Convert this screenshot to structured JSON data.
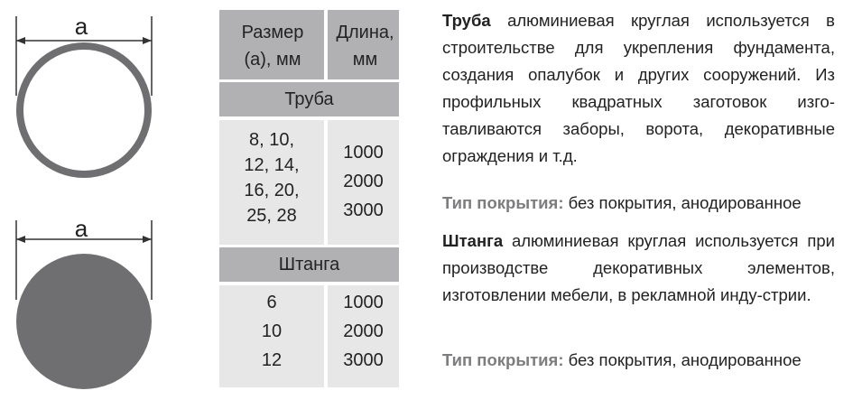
{
  "diagrams": {
    "tube_label": "a",
    "rod_label": "a"
  },
  "table": {
    "header": {
      "size": "Размер (a), мм",
      "length": "Длина, мм"
    },
    "sections": [
      {
        "name": "Труба",
        "sizes": [
          "8, 10,",
          "12, 14,",
          "16, 20,",
          "25, 28"
        ],
        "lengths": [
          "1000",
          "2000",
          "3000"
        ]
      },
      {
        "name": "Штанга",
        "sizes": [
          "6",
          "10",
          "12"
        ],
        "lengths": [
          "1000",
          "2000",
          "3000"
        ]
      }
    ]
  },
  "text": {
    "tube_title": "Труба",
    "tube_desc": "алюминиевая круглая используется в строительстве для укрепления фундамента, создания опалубок и других сооружений. Из профильных квадратных заготовок изго-тавливаются заборы, ворота, декоративные ограждения и т.д.",
    "coating_label": "Тип покрытия:",
    "coating_value": "без покрытия, анодированное",
    "rod_title": "Штанга",
    "rod_desc": "алюминиевая круглая используется при производстве декоративных элементов, изготовлении мебели, в рекламной инду-стрии.",
    "coating_label_2": "Тип покрытия:",
    "coating_value_2": "без покрытия, анодированное"
  },
  "colors": {
    "diagram_gray": "#6f6f71",
    "header_gray": "#b1b1b3",
    "cell_gray": "#e7e7e8",
    "label_gray": "#7d7d7f"
  }
}
